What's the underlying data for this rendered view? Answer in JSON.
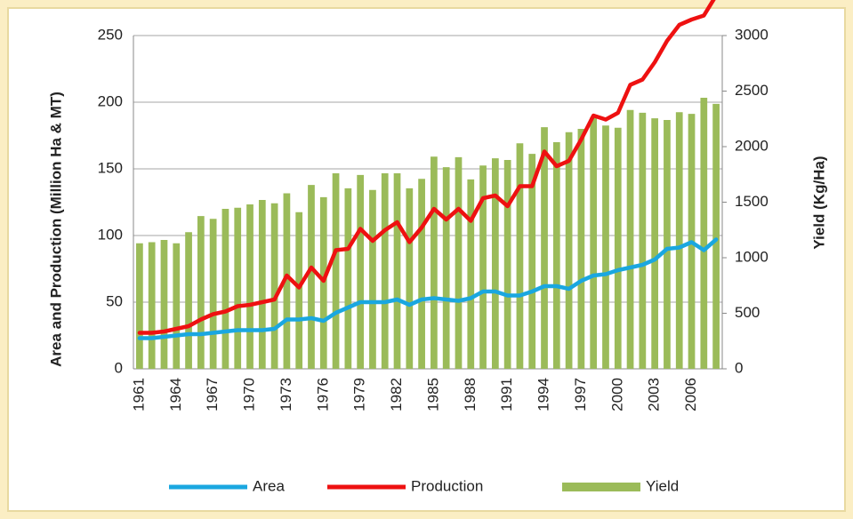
{
  "chart_data": {
    "type": "bar_line",
    "categories": [
      "1961",
      null,
      null,
      "1964",
      null,
      null,
      "1967",
      null,
      null,
      "1970",
      null,
      null,
      "1973",
      null,
      null,
      "1976",
      null,
      null,
      "1979",
      null,
      null,
      "1982",
      null,
      null,
      "1985",
      null,
      null,
      "1988",
      null,
      null,
      "1991",
      null,
      null,
      "1994",
      null,
      null,
      "1997",
      null,
      null,
      "2000",
      null,
      null,
      "2003",
      null,
      null,
      "2006",
      null,
      null
    ],
    "series": [
      {
        "name": "Area",
        "color": "#1aa7e0",
        "chart": "line",
        "axis": "y",
        "values": [
          23,
          23,
          24,
          25,
          26,
          26,
          27,
          28,
          29,
          29,
          29,
          30,
          37,
          37,
          38,
          36,
          42,
          46,
          50,
          50,
          50,
          52,
          48,
          52,
          53,
          52,
          51,
          53,
          58,
          58,
          55,
          55,
          58,
          62,
          62,
          60,
          66,
          70,
          71,
          74,
          76,
          78,
          82,
          90,
          91,
          95,
          89,
          97
        ]
      },
      {
        "name": "Production",
        "color": "#ee1111",
        "chart": "line",
        "axis": "y",
        "values": [
          27,
          27,
          28,
          30,
          32,
          37,
          41,
          43,
          47,
          48,
          50,
          52,
          70,
          61,
          76,
          66,
          89,
          90,
          105,
          96,
          104,
          110,
          95,
          106,
          120,
          112,
          120,
          111,
          128,
          130,
          122,
          137,
          137,
          163,
          152,
          156,
          172,
          190,
          187,
          192,
          213,
          217,
          230,
          246,
          258,
          262,
          265,
          280
        ]
      },
      {
        "name": "Yield",
        "color": "#9bbb59",
        "chart": "bar",
        "axis": "y2",
        "values": [
          1130,
          1140,
          1160,
          1130,
          1230,
          1375,
          1350,
          1440,
          1450,
          1480,
          1520,
          1490,
          1580,
          1410,
          1655,
          1545,
          1760,
          1625,
          1745,
          1610,
          1760,
          1760,
          1625,
          1710,
          1910,
          1815,
          1905,
          1705,
          1830,
          1895,
          1880,
          2030,
          1935,
          2175,
          2040,
          2130,
          2160,
          2265,
          2190,
          2170,
          2330,
          2305,
          2255,
          2240,
          2310,
          2295,
          2440,
          2385
        ]
      }
    ],
    "y_label": "Area and Production (Million Ha & MT)",
    "y2_label": "Yield (Kg/Ha)",
    "ylim": [
      0,
      250
    ],
    "yticks": [
      0,
      50,
      100,
      150,
      200,
      250
    ],
    "y2lim": [
      0,
      3000
    ],
    "y2ticks": [
      0,
      500,
      1000,
      1500,
      2000,
      2500,
      3000
    ],
    "grid": true,
    "legend": "bottom"
  }
}
